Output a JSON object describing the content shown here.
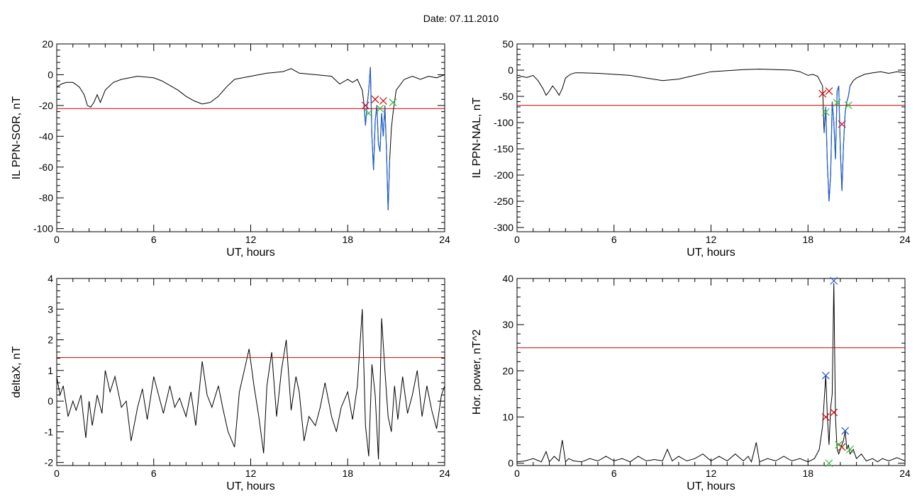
{
  "page": {
    "title": "Date:  07.11.2010"
  },
  "colors": {
    "data": "#000000",
    "threshold": "#cc0000",
    "highlight": "#1f5fd0",
    "marker_red": "#cc0000",
    "marker_green": "#33bb33",
    "marker_blue": "#2255cc"
  },
  "chart_data": [
    {
      "type": "line",
      "ylabel": "IL PPN-SOR, nT",
      "xlabel": "UT, hours",
      "xlim": [
        0,
        24
      ],
      "ylim": [
        -102,
        20
      ],
      "xticks": [
        0,
        6,
        12,
        18,
        24
      ],
      "xtick_labels": [
        "0",
        "6",
        "12",
        "18",
        "24"
      ],
      "yticks": [
        -100,
        -80,
        -60,
        -40,
        -20,
        0,
        20
      ],
      "ytick_labels": [
        "-100",
        "-80",
        "-60",
        "-40",
        "-20",
        "0",
        "20"
      ],
      "threshold": -22,
      "series": [
        {
          "x": [
            0,
            0.3,
            0.6,
            1,
            1.4,
            1.7,
            1.9,
            2.1,
            2.3,
            2.5,
            2.7,
            3,
            3.5,
            4,
            5,
            6,
            6.5,
            7,
            7.5,
            8,
            8.5,
            9,
            9.5,
            10,
            10.5,
            11,
            11.5,
            12,
            13,
            14,
            14.5,
            15,
            16,
            17,
            17.5,
            18,
            18.3,
            18.6,
            18.9,
            19,
            19.1,
            19.2,
            19.3,
            19.4,
            19.5,
            19.6,
            19.7,
            19.8,
            19.9,
            20,
            20.1,
            20.2,
            20.3,
            20.4,
            20.5,
            20.6,
            20.7,
            20.8,
            21,
            21.5,
            22,
            22.5,
            23,
            23.5,
            24
          ],
          "y": [
            -8,
            -6,
            -5,
            -5,
            -8,
            -13,
            -20,
            -21,
            -18,
            -13,
            -18,
            -10,
            -5,
            -3,
            -1,
            -2,
            -4,
            -7,
            -10,
            -14,
            -17,
            -19,
            -18,
            -14,
            -8,
            -3,
            -2,
            -1,
            1,
            2,
            4,
            1,
            0,
            -1,
            -6,
            -3,
            -5,
            -3,
            -10,
            -18,
            -33,
            -20,
            -10,
            5,
            -40,
            -62,
            -30,
            -20,
            -45,
            -50,
            -25,
            -40,
            -20,
            -50,
            -88,
            -55,
            -35,
            -25,
            -10,
            -3,
            -1,
            -3,
            -1,
            -2,
            0
          ]
        }
      ],
      "highlight_segments": [
        [
          19.0,
          20.6
        ]
      ],
      "markers": [
        {
          "x": 19.1,
          "y": -20,
          "color": "red"
        },
        {
          "x": 19.7,
          "y": -16,
          "color": "red"
        },
        {
          "x": 20.2,
          "y": -17,
          "color": "red"
        },
        {
          "x": 19.3,
          "y": -25,
          "color": "green"
        },
        {
          "x": 20.0,
          "y": -22,
          "color": "green"
        },
        {
          "x": 20.8,
          "y": -18,
          "color": "green"
        }
      ]
    },
    {
      "type": "line",
      "ylabel": "IL PPN-NAL, nT",
      "xlabel": "UT, hours",
      "xlim": [
        0,
        24
      ],
      "ylim": [
        -308,
        50
      ],
      "xticks": [
        0,
        6,
        12,
        18,
        24
      ],
      "xtick_labels": [
        "0",
        "6",
        "12",
        "18",
        "24"
      ],
      "yticks": [
        -300,
        -250,
        -200,
        -150,
        -100,
        -50,
        0,
        50
      ],
      "ytick_labels": [
        "-300",
        "-250",
        "-200",
        "-150",
        "-100",
        "-50",
        "0",
        "50"
      ],
      "threshold": -67,
      "series": [
        {
          "x": [
            0,
            0.3,
            0.6,
            1,
            1.3,
            1.6,
            1.8,
            2,
            2.2,
            2.4,
            2.6,
            2.8,
            3,
            3.3,
            3.6,
            4,
            5,
            6,
            7,
            8,
            9,
            10,
            11,
            12,
            13,
            14,
            15,
            16,
            17,
            17.5,
            18,
            18.3,
            18.6,
            18.9,
            19,
            19.1,
            19.2,
            19.3,
            19.4,
            19.5,
            19.6,
            19.7,
            19.8,
            19.9,
            20,
            20.1,
            20.2,
            20.3,
            20.4,
            20.5,
            20.6,
            20.8,
            21,
            21.5,
            22,
            22.5,
            23,
            23.5,
            24
          ],
          "y": [
            -15,
            -12,
            -14,
            -10,
            -20,
            -35,
            -48,
            -40,
            -30,
            -38,
            -48,
            -35,
            -15,
            -8,
            -5,
            -5,
            -6,
            -8,
            -10,
            -15,
            -20,
            -17,
            -10,
            -3,
            -1,
            1,
            2,
            1,
            0,
            -3,
            -10,
            -8,
            -12,
            -30,
            -120,
            -70,
            -180,
            -250,
            -200,
            -60,
            -100,
            -170,
            -40,
            -30,
            -150,
            -230,
            -140,
            -80,
            -60,
            -50,
            -30,
            -20,
            -15,
            -8,
            -5,
            -3,
            -6,
            -3,
            -5
          ]
        }
      ],
      "highlight_segments": [
        [
          19.0,
          20.6
        ]
      ],
      "markers": [
        {
          "x": 18.9,
          "y": -45,
          "color": "red"
        },
        {
          "x": 19.3,
          "y": -40,
          "color": "red"
        },
        {
          "x": 20.1,
          "y": -103,
          "color": "red"
        },
        {
          "x": 19.1,
          "y": -80,
          "color": "green"
        },
        {
          "x": 19.8,
          "y": -62,
          "color": "green"
        },
        {
          "x": 20.5,
          "y": -67,
          "color": "green"
        }
      ]
    },
    {
      "type": "line",
      "ylabel": "deltaX, nT",
      "xlabel": "UT, hours",
      "xlim": [
        0,
        24
      ],
      "ylim": [
        -2.1,
        4
      ],
      "xticks": [
        0,
        6,
        12,
        18,
        24
      ],
      "xtick_labels": [
        "0",
        "6",
        "12",
        "18",
        "24"
      ],
      "yticks": [
        -2,
        -1,
        0,
        1,
        2,
        3,
        4
      ],
      "ytick_labels": [
        "-2",
        "-1",
        "0",
        "1",
        "2",
        "3",
        "4"
      ],
      "threshold": 1.42,
      "series": [
        {
          "x": [
            0,
            0.2,
            0.4,
            0.7,
            1,
            1.2,
            1.5,
            1.8,
            2,
            2.2,
            2.5,
            2.8,
            3,
            3.3,
            3.6,
            4,
            4.3,
            4.6,
            5,
            5.3,
            5.6,
            6,
            6.3,
            6.6,
            7,
            7.3,
            7.6,
            8,
            8.3,
            8.6,
            9,
            9.3,
            9.6,
            10,
            10.3,
            10.6,
            11,
            11.3,
            11.6,
            11.9,
            12.2,
            12.5,
            12.8,
            13,
            13.3,
            13.6,
            13.9,
            14.2,
            14.5,
            14.8,
            15,
            15.3,
            15.6,
            16,
            16.3,
            16.6,
            17,
            17.3,
            17.6,
            18,
            18.3,
            18.6,
            18.9,
            19.1,
            19.3,
            19.5,
            19.7,
            19.9,
            20.1,
            20.3,
            20.5,
            20.7,
            20.9,
            21.1,
            21.4,
            21.7,
            22,
            22.3,
            22.6,
            22.9,
            23.2,
            23.5,
            23.8,
            24
          ],
          "y": [
            0.8,
            0.2,
            0.5,
            -0.5,
            0,
            -0.3,
            0.2,
            -1.2,
            0,
            -0.8,
            0.2,
            -0.4,
            1,
            0.3,
            0.8,
            -0.2,
            0,
            -1.3,
            -0.2,
            0.4,
            -0.6,
            0.8,
            0.2,
            -0.4,
            0.5,
            -0.2,
            0.1,
            -0.5,
            0.3,
            -0.8,
            1.3,
            0.2,
            -0.2,
            0.5,
            -0.3,
            -1,
            -1.5,
            0.3,
            1,
            1.7,
            0.5,
            -0.5,
            -1.7,
            0.5,
            1.6,
            -0.5,
            1,
            2,
            -0.3,
            0.8,
            0.3,
            -1.3,
            -0.5,
            -0.8,
            -0.2,
            0.6,
            -0.5,
            -1,
            -0.2,
            0.3,
            -0.6,
            0.5,
            3,
            -0.8,
            -1.8,
            1.2,
            0.2,
            -1.9,
            2.7,
            1,
            -0.5,
            -1,
            0.5,
            -0.6,
            0.8,
            -0.4,
            0.2,
            1,
            -0.5,
            0.5,
            -0.3,
            -0.9,
            0.2,
            0.5
          ]
        }
      ]
    },
    {
      "type": "line",
      "ylabel": "Hor. power, nT^2",
      "xlabel": "UT, hours",
      "xlim": [
        0,
        24
      ],
      "ylim": [
        -0.5,
        40
      ],
      "xticks": [
        0,
        6,
        12,
        18,
        24
      ],
      "xtick_labels": [
        "0",
        "6",
        "12",
        "18",
        "24"
      ],
      "yticks": [
        0,
        10,
        20,
        30,
        40
      ],
      "ytick_labels": [
        "0",
        "10",
        "20",
        "30",
        "40"
      ],
      "threshold": 25,
      "series": [
        {
          "x": [
            0,
            0.5,
            1,
            1.5,
            1.8,
            2,
            2.3,
            2.6,
            2.8,
            3,
            3.2,
            3.5,
            4,
            4.5,
            5,
            5.5,
            6,
            6.5,
            7,
            7.5,
            8,
            8.5,
            9,
            9.3,
            9.6,
            10,
            10.5,
            11,
            11.5,
            12,
            12.5,
            13,
            13.5,
            14,
            14.3,
            14.5,
            14.8,
            15,
            15.5,
            16,
            16.5,
            17,
            17.5,
            18,
            18.4,
            18.7,
            18.9,
            19.1,
            19.2,
            19.3,
            19.4,
            19.5,
            19.6,
            19.7,
            19.8,
            19.9,
            20,
            20.1,
            20.2,
            20.3,
            20.4,
            20.5,
            20.6,
            20.8,
            21,
            21.3,
            21.6,
            22,
            22.3,
            22.6,
            23,
            23.5,
            24
          ],
          "y": [
            0.3,
            0.5,
            1,
            0.3,
            2.5,
            0.3,
            1.5,
            0.5,
            5,
            0.3,
            1,
            0.5,
            0.3,
            1,
            0.5,
            1.5,
            0.5,
            1,
            0.3,
            1.5,
            0.5,
            0.8,
            0.5,
            3,
            0.5,
            1.5,
            0.5,
            1,
            2,
            0.5,
            1.5,
            0.5,
            2,
            0.5,
            1.5,
            0.3,
            4.5,
            0.3,
            1,
            0.5,
            1.5,
            0.5,
            1,
            0.3,
            1,
            3,
            8,
            19,
            10,
            4,
            12,
            15,
            39,
            10,
            3,
            2,
            3,
            4,
            5,
            7,
            3,
            4,
            2,
            3,
            1,
            2,
            0.5,
            1,
            0.3,
            1,
            0.5,
            1.2,
            0.5
          ]
        }
      ],
      "markers": [
        {
          "x": 19.1,
          "y": 19,
          "color": "blue"
        },
        {
          "x": 19.6,
          "y": 39.5,
          "color": "blue"
        },
        {
          "x": 20.3,
          "y": 7,
          "color": "blue"
        },
        {
          "x": 19.1,
          "y": 10,
          "color": "red"
        },
        {
          "x": 19.6,
          "y": 11,
          "color": "red"
        },
        {
          "x": 20.1,
          "y": 3.5,
          "color": "red"
        },
        {
          "x": 19.3,
          "y": 0,
          "color": "green"
        },
        {
          "x": 19.9,
          "y": 4,
          "color": "green"
        },
        {
          "x": 20.6,
          "y": 3,
          "color": "green"
        }
      ]
    }
  ]
}
